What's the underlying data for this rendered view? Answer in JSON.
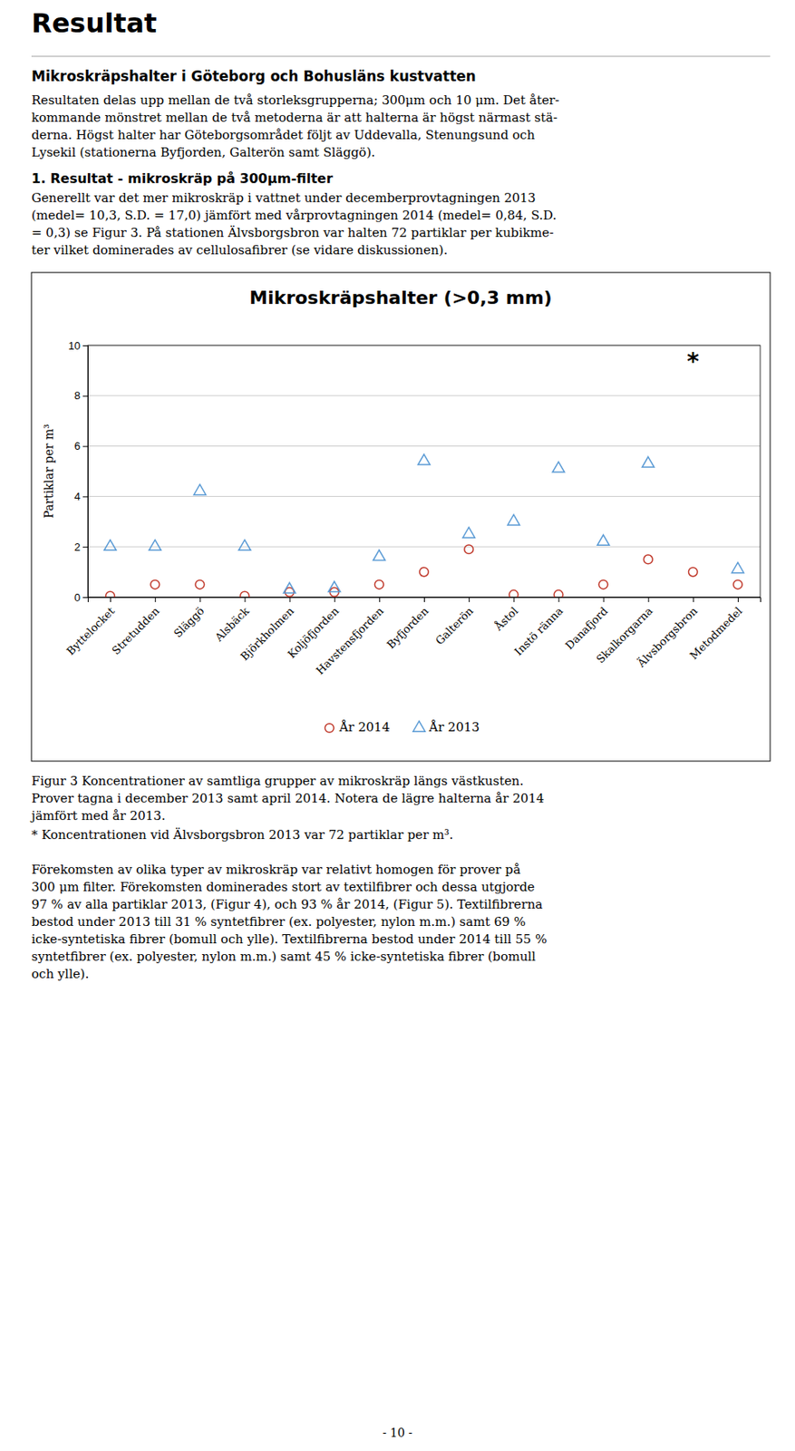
{
  "title": "Resultat",
  "section_heading": "Mikroskräpshalter i Göteborg och Bohusläns kustvatten",
  "para1_lines": [
    "Resultaten delas upp mellan de två storleksgrupperna; 300μm och 10 μm. Det åter-",
    "kommande mönstret mellan de två metoderna är att halterna är högst närmast stä-",
    "derna. Högst halter har Göteborgsområdet följt av Uddevalla, Stenungsund och",
    "Lysekil (stationerna Byfjorden, Galterön samt Släggö)."
  ],
  "section2_heading": "1. Resultat - mikroskräp på 300μm-filter",
  "para2_lines": [
    "Generellt var det mer mikroskräp i vattnet under decemberprovtagningen 2013",
    "(medel= 10,3, S.D. = 17,0) jämfört med vårprovtagningen 2014 (medel= 0,84, S.D.",
    "= 0,3) se Figur 3. På stationen Älvsborgsbron var halten 72 partiklar per kubikme-",
    "ter vilket dominerades av cellulosafibrer (se vidare diskussionen)."
  ],
  "chart_data": {
    "type": "scatter",
    "title": "Mikroskräpshalter (>0,3 mm)",
    "ylabel": "Partiklar per m³",
    "categories": [
      "Byttelocket",
      "Stretudden",
      "Släggö",
      "Alsbäck",
      "Björkholmen",
      "Koljöfjorden",
      "Havstensfjorden",
      "Byfjorden",
      "Galterön",
      "Åstol",
      "Instö ränna",
      "Danafjord",
      "Skalkorgarna",
      "Älvsborgsbron",
      "Metodmedel"
    ],
    "series": [
      {
        "name": "År 2014",
        "color": "#c0392b",
        "marker": "circle",
        "values": [
          0.05,
          0.5,
          0.5,
          0.05,
          0.2,
          0.2,
          0.5,
          1.0,
          1.9,
          0.1,
          0.1,
          0.5,
          1.5,
          1.0,
          0.5
        ]
      },
      {
        "name": "År 2013",
        "color": "#5b9bd5",
        "marker": "triangle",
        "values": [
          2.0,
          2.0,
          4.2,
          2.0,
          0.3,
          0.35,
          1.6,
          5.4,
          2.5,
          3.0,
          5.1,
          2.2,
          5.3,
          null,
          1.1
        ]
      }
    ],
    "annotations": [
      {
        "text": "*",
        "x": "Älvsborgsbron",
        "y": 9.65
      }
    ],
    "ylim": [
      0,
      10
    ],
    "yticks": [
      0,
      2,
      4,
      6,
      8,
      10
    ],
    "grid": true,
    "legend": "bottom"
  },
  "fig3_cap_lines": [
    "Figur 3 Koncentrationer av samtliga grupper av mikroskräp längs västkusten.",
    "Prover tagna i december 2013 samt april 2014. Notera de lägre halterna år 2014",
    "jämfört med år 2013."
  ],
  "star_note": "* Koncentrationen vid Älvsborgsbron 2013 var 72 partiklar per m³.",
  "para3_lines": [
    "Förekomsten av olika typer av mikroskräp var relativt homogen för prover på",
    "300 μm filter. Förekomsten dominerades stort av textilfibrer och dessa utgjorde",
    "97 % av alla partiklar 2013, (Figur 4), och 93 % år 2014, (Figur 5). Textilfibrerna",
    "bestod under 2013 till 31 % syntetfibrer (ex. polyester, nylon m.m.) samt 69 %",
    "icke-syntetiska fibrer (bomull och ylle). Textilfibrerna bestod under 2014 till 55 %",
    "syntetfibrer (ex. polyester, nylon m.m.) samt 45 % icke-syntetiska fibrer (bomull",
    "och ylle)."
  ],
  "page_number": "- 10 -"
}
